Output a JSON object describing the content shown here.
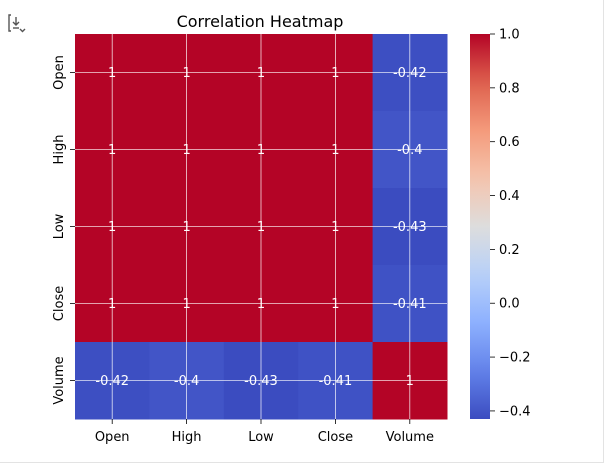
{
  "toolbar": {
    "icon": "output-expand-icon"
  },
  "chart_data": {
    "type": "heatmap",
    "title": "Correlation Heatmap",
    "xlabel": "",
    "ylabel": "",
    "rows": [
      "Open",
      "High",
      "Low",
      "Close",
      "Volume"
    ],
    "columns": [
      "Open",
      "High",
      "Low",
      "Close",
      "Volume"
    ],
    "values": [
      [
        1,
        1,
        1,
        1,
        -0.42
      ],
      [
        1,
        1,
        1,
        1,
        -0.4
      ],
      [
        1,
        1,
        1,
        1,
        -0.43
      ],
      [
        1,
        1,
        1,
        1,
        -0.41
      ],
      [
        -0.42,
        -0.4,
        -0.43,
        -0.41,
        1
      ]
    ],
    "annotations": [
      [
        "1",
        "1",
        "1",
        "1",
        "-0.42"
      ],
      [
        "1",
        "1",
        "1",
        "1",
        "-0.4"
      ],
      [
        "1",
        "1",
        "1",
        "1",
        "-0.43"
      ],
      [
        "1",
        "1",
        "1",
        "1",
        "-0.41"
      ],
      [
        "-0.42",
        "-0.4",
        "-0.43",
        "-0.41",
        "1"
      ]
    ],
    "colormap": "coolwarm",
    "colorbar": {
      "range": [
        -0.43,
        1
      ],
      "ticks": [
        1.0,
        0.8,
        0.6,
        0.4,
        0.2,
        0.0,
        -0.2,
        -0.4
      ],
      "tick_labels": [
        "1.0",
        "0.8",
        "0.6",
        "0.4",
        "0.2",
        "0.0",
        "−0.2",
        "−0.4"
      ]
    },
    "grid": true
  }
}
